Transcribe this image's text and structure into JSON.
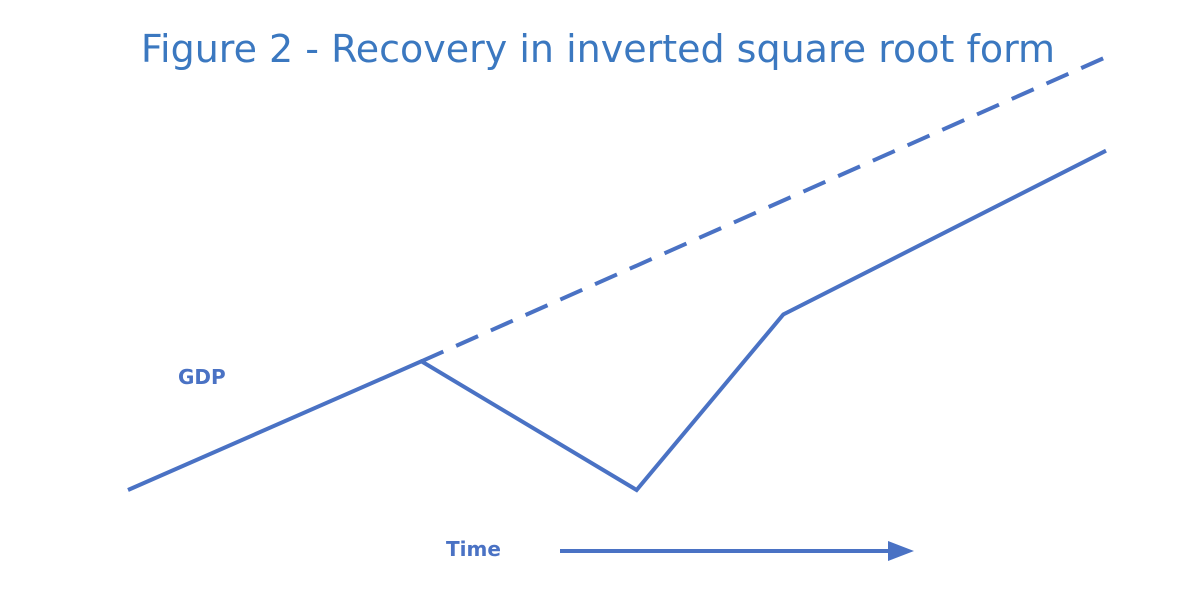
{
  "title": "Figure 2 - Recovery in inverted square root form",
  "y_label": "GDP",
  "x_label": "Time",
  "colors": {
    "title": "#3b78c0",
    "line": "#4a72c4",
    "label": "#4a72c4"
  },
  "icons": {
    "time_arrow": "arrow-right-icon"
  },
  "diagram": {
    "actual_path": [
      {
        "t": 0,
        "gdp": 0
      },
      {
        "t": 30,
        "gdp": 11
      },
      {
        "t": 52,
        "gdp": 0
      },
      {
        "t": 67,
        "gdp": 15
      },
      {
        "t": 100,
        "gdp": 29
      }
    ],
    "trend_path": [
      {
        "t": 30,
        "gdp": 11
      },
      {
        "t": 100,
        "gdp": 37
      }
    ]
  }
}
